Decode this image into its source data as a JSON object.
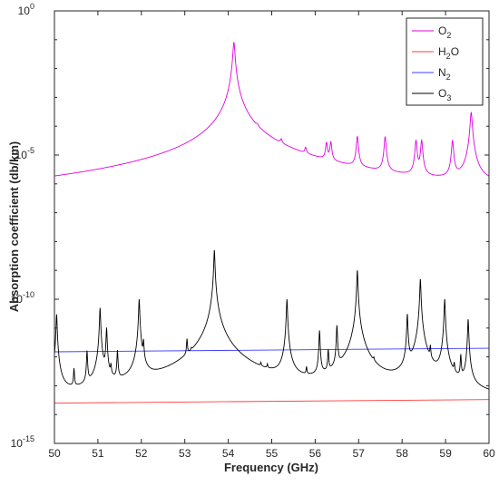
{
  "chart_data": {
    "type": "line",
    "xlabel": "Frequency (GHz)",
    "ylabel": "Absorption coefficient (db/km)",
    "xlim": [
      50,
      60
    ],
    "ylim": [
      1e-15,
      1
    ],
    "yscale": "log",
    "grid": false,
    "legend_position": "top-right",
    "x_ticks": [
      "50",
      "51",
      "52",
      "53",
      "54",
      "55",
      "56",
      "57",
      "58",
      "59",
      "60"
    ],
    "y_ticks": [
      {
        "base": "10",
        "exp": "-15",
        "value": 1e-15
      },
      {
        "base": "10",
        "exp": "-10",
        "value": 1e-10
      },
      {
        "base": "10",
        "exp": "-5",
        "value": 1e-05
      },
      {
        "base": "10",
        "exp": "0",
        "value": 1
      }
    ],
    "series": [
      {
        "name": "O2",
        "name_base": "O",
        "name_sub": "2",
        "color": "#e000e0",
        "kind": "lines",
        "baseline": {
          "start": 1e-10,
          "end": 2e-07
        },
        "width": 0.02,
        "lines": [
          [
            50.47,
            3e-10
          ],
          [
            50.99,
            1.3e-09
          ],
          [
            51.5,
            5e-09
          ],
          [
            52.02,
            2.8e-08
          ],
          [
            52.54,
            4e-08
          ],
          [
            53.07,
            1e-07
          ],
          [
            53.6,
            2e-07
          ],
          [
            54.13,
            0.08
          ],
          [
            54.67,
            1.5e-05
          ],
          [
            55.22,
            1e-05
          ],
          [
            55.78,
            7e-06
          ],
          [
            56.26,
            2e-05
          ],
          [
            56.36,
            2.2e-05
          ],
          [
            56.97,
            4e-05
          ],
          [
            57.61,
            4e-05
          ],
          [
            58.32,
            3e-05
          ],
          [
            58.45,
            3e-05
          ],
          [
            59.16,
            3e-05
          ],
          [
            59.59,
            0.0003
          ]
        ]
      },
      {
        "name": "H2O",
        "name_base": "H",
        "name_sub": "2",
        "name_tail": "O",
        "color": "#ff3b3b",
        "kind": "flat",
        "values": {
          "start": 2.5e-14,
          "end": 3.3e-14
        }
      },
      {
        "name": "N2",
        "name_base": "N",
        "name_sub": "2",
        "color": "#3b3bff",
        "kind": "flat",
        "values": {
          "start": 1.5e-12,
          "end": 2e-12
        }
      },
      {
        "name": "O3",
        "name_base": "O",
        "name_sub": "3",
        "color": "#000000",
        "kind": "lines",
        "baseline": {
          "start": 1.2e-14,
          "end": 1.2e-14
        },
        "width": 0.01,
        "lines": [
          [
            50.05,
            3e-11
          ],
          [
            50.45,
            3e-13
          ],
          [
            50.75,
            1.5e-12
          ],
          [
            51.05,
            5e-11
          ],
          [
            51.2,
            1e-11
          ],
          [
            51.3,
            3e-13
          ],
          [
            51.45,
            1.5e-12
          ],
          [
            51.95,
            1e-10
          ],
          [
            52.05,
            3e-12
          ],
          [
            53.05,
            3e-12
          ],
          [
            53.15,
            3e-13
          ],
          [
            53.68,
            5e-09
          ],
          [
            54.75,
            1.5e-13
          ],
          [
            54.9,
            1.5e-13
          ],
          [
            55.35,
            1e-10
          ],
          [
            55.8,
            2e-13
          ],
          [
            56.1,
            8e-12
          ],
          [
            56.3,
            1.5e-12
          ],
          [
            56.5,
            1.2e-11
          ],
          [
            56.85,
            2e-13
          ],
          [
            56.97,
            1e-09
          ],
          [
            57.35,
            2e-13
          ],
          [
            58.12,
            3e-11
          ],
          [
            58.42,
            5e-10
          ],
          [
            58.65,
            1.5e-12
          ],
          [
            58.98,
            1e-10
          ],
          [
            59.2,
            3e-13
          ],
          [
            59.35,
            1e-12
          ],
          [
            59.52,
            2e-11
          ]
        ]
      }
    ]
  }
}
